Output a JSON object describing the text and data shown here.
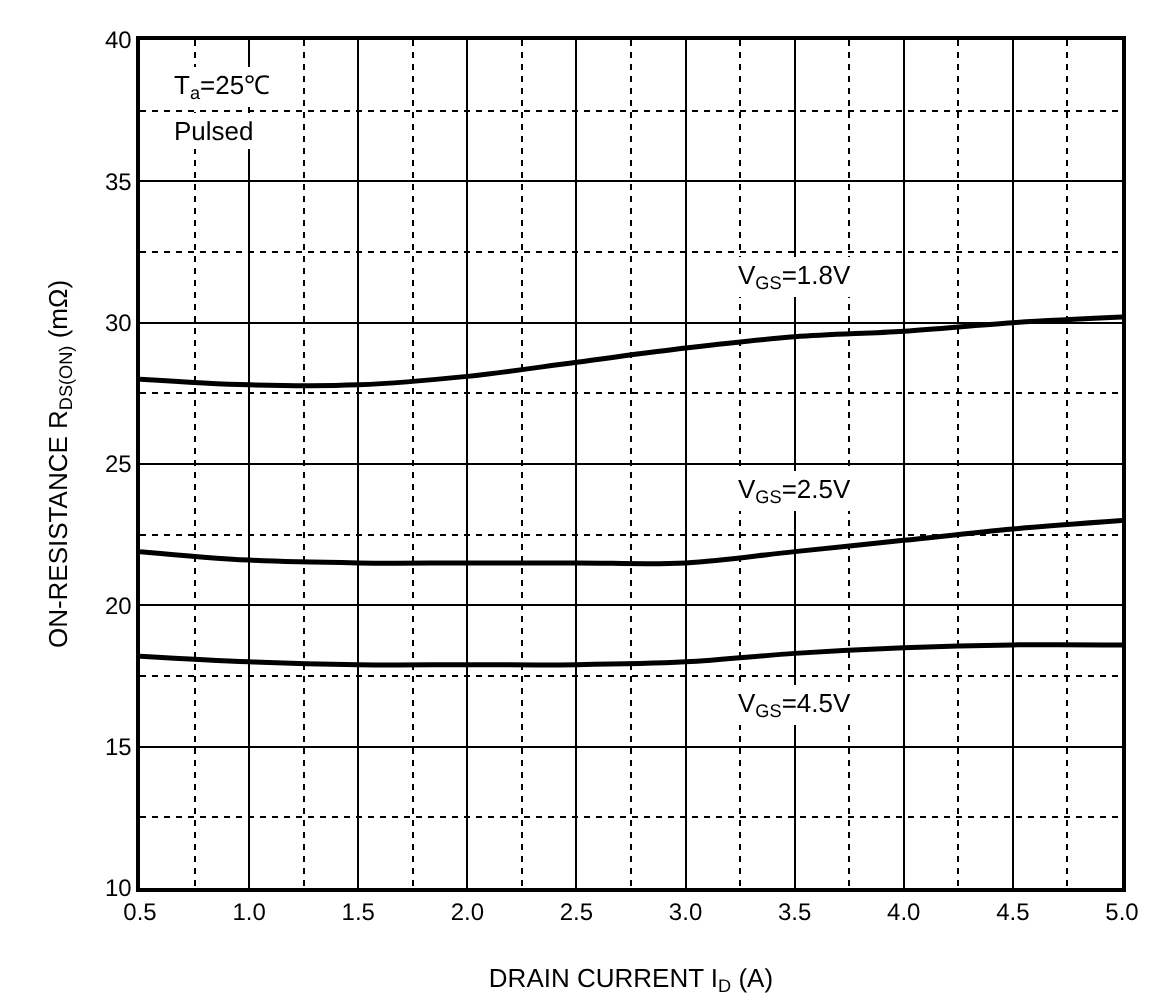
{
  "chart_data": {
    "type": "line",
    "xlabel": "DRAIN CURRENT I$_{D}$ (A)",
    "ylabel": "ON-RESISTANCE R$_{DS(ON)}$ (mΩ)",
    "x": [
      0.5,
      1.0,
      1.5,
      2.0,
      2.5,
      3.0,
      3.5,
      4.0,
      4.5,
      5.0
    ],
    "series": [
      {
        "name": "V$_{GS}$=1.8V",
        "color": "#000000",
        "values": [
          28.0,
          27.8,
          27.8,
          28.1,
          28.6,
          29.1,
          29.5,
          29.7,
          30.0,
          30.2
        ]
      },
      {
        "name": "V$_{GS}$=2.5V",
        "color": "#000000",
        "values": [
          21.9,
          21.6,
          21.5,
          21.5,
          21.5,
          21.5,
          21.9,
          22.3,
          22.7,
          23.0
        ]
      },
      {
        "name": "V$_{GS}$=4.5V",
        "color": "#000000",
        "values": [
          18.2,
          18.0,
          17.9,
          17.9,
          17.9,
          18.0,
          18.3,
          18.5,
          18.6,
          18.6
        ]
      }
    ],
    "annotations": [
      "T$_{a}$=25℃",
      "Pulsed"
    ],
    "xlim": [
      0.5,
      5.0
    ],
    "ylim": [
      10,
      40
    ],
    "xticks": [
      0.5,
      {
        "value": 1,
        "label": "1.0"
      },
      1.5,
      {
        "value": 2,
        "label": "2.0"
      },
      2.5,
      {
        "value": 3,
        "label": "3.0"
      },
      3.5,
      {
        "value": 4,
        "label": "4.0"
      },
      4.5,
      {
        "value": 5,
        "label": "5.0"
      }
    ],
    "yticks": [
      10,
      15,
      20,
      25,
      30,
      35,
      40
    ],
    "grid": true,
    "marker": "none",
    "line_style": "solid"
  }
}
